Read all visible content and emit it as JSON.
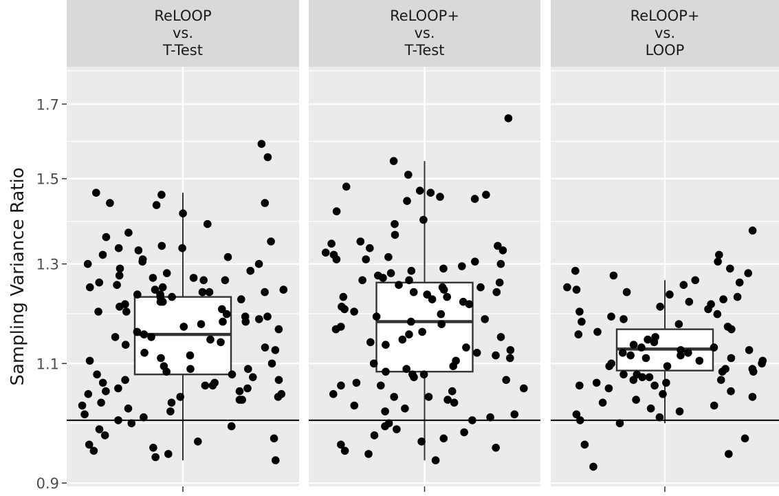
{
  "chart_data": {
    "type": "boxplot",
    "ylabel": "Sampling Variance Ratio",
    "y_scale": "log",
    "ylim": [
      0.895,
      1.81
    ],
    "y_ticks": [
      0.9,
      1.1,
      1.3,
      1.5,
      1.7
    ],
    "y_tick_labels": [
      "0.9",
      "1.1",
      "1.3",
      "1.5",
      "1.7"
    ],
    "reference_line": 1.0,
    "grid": true,
    "facets": [
      {
        "title": [
          "ReLOOP",
          "vs.",
          "T-Test"
        ],
        "box": {
          "q1": 1.08,
          "median": 1.155,
          "q3": 1.23,
          "whisker_low": 0.935,
          "whisker_high": 1.465
        },
        "points": [
          1.59,
          1.555,
          1.465,
          1.46,
          1.44,
          1.44,
          1.435,
          1.415,
          1.39,
          1.37,
          1.36,
          1.35,
          1.34,
          1.335,
          1.335,
          1.33,
          1.32,
          1.315,
          1.31,
          1.305,
          1.3,
          1.3,
          1.29,
          1.285,
          1.28,
          1.275,
          1.27,
          1.27,
          1.265,
          1.265,
          1.26,
          1.255,
          1.25,
          1.25,
          1.245,
          1.245,
          1.24,
          1.24,
          1.24,
          1.235,
          1.235,
          1.23,
          1.23,
          1.225,
          1.22,
          1.22,
          1.215,
          1.21,
          1.205,
          1.2,
          1.2,
          1.195,
          1.19,
          1.19,
          1.185,
          1.18,
          1.18,
          1.175,
          1.17,
          1.165,
          1.16,
          1.155,
          1.15,
          1.15,
          1.145,
          1.14,
          1.135,
          1.13,
          1.125,
          1.12,
          1.115,
          1.11,
          1.105,
          1.1,
          1.095,
          1.09,
          1.09,
          1.085,
          1.08,
          1.08,
          1.075,
          1.07,
          1.07,
          1.065,
          1.065,
          1.06,
          1.06,
          1.055,
          1.055,
          1.05,
          1.05,
          1.045,
          1.045,
          1.04,
          1.04,
          1.035,
          1.035,
          1.03,
          1.03,
          1.025,
          1.02,
          1.015,
          1.01,
          1.005,
          1.0,
          0.995,
          0.99,
          0.985,
          0.975,
          0.97,
          0.965,
          0.96,
          0.955,
          0.95,
          0.945,
          0.94,
          0.935
        ]
      },
      {
        "title": [
          "ReLOOP+",
          "vs.",
          "T-Test"
        ],
        "box": {
          "q1": 1.085,
          "median": 1.18,
          "q3": 1.26,
          "whisker_low": 0.935,
          "whisker_high": 1.545
        },
        "points": [
          1.66,
          1.545,
          1.51,
          1.48,
          1.47,
          1.465,
          1.46,
          1.455,
          1.45,
          1.445,
          1.42,
          1.4,
          1.39,
          1.365,
          1.35,
          1.345,
          1.34,
          1.335,
          1.33,
          1.325,
          1.32,
          1.315,
          1.31,
          1.31,
          1.305,
          1.3,
          1.295,
          1.29,
          1.285,
          1.28,
          1.275,
          1.27,
          1.265,
          1.265,
          1.26,
          1.255,
          1.25,
          1.25,
          1.245,
          1.24,
          1.24,
          1.235,
          1.23,
          1.23,
          1.225,
          1.22,
          1.215,
          1.21,
          1.205,
          1.2,
          1.195,
          1.19,
          1.185,
          1.18,
          1.175,
          1.17,
          1.165,
          1.16,
          1.155,
          1.15,
          1.145,
          1.14,
          1.135,
          1.13,
          1.125,
          1.12,
          1.115,
          1.11,
          1.105,
          1.1,
          1.095,
          1.09,
          1.085,
          1.08,
          1.08,
          1.075,
          1.07,
          1.065,
          1.06,
          1.06,
          1.055,
          1.05,
          1.045,
          1.04,
          1.04,
          1.035,
          1.03,
          1.025,
          1.02,
          1.015,
          1.01,
          1.005,
          1.0,
          0.995,
          0.99,
          0.985,
          0.98,
          0.975,
          0.97,
          0.965,
          0.96,
          0.955,
          0.95,
          0.945,
          0.935
        ]
      },
      {
        "title": [
          "ReLOOP+",
          "vs.",
          "LOOP"
        ],
        "box": {
          "q1": 1.087,
          "median": 1.127,
          "q3": 1.165,
          "whisker_low": 0.995,
          "whisker_high": 1.265
        },
        "points": [
          1.375,
          1.32,
          1.305,
          1.29,
          1.285,
          1.28,
          1.275,
          1.265,
          1.26,
          1.255,
          1.25,
          1.245,
          1.24,
          1.235,
          1.23,
          1.225,
          1.22,
          1.215,
          1.21,
          1.205,
          1.2,
          1.195,
          1.19,
          1.185,
          1.18,
          1.175,
          1.17,
          1.165,
          1.16,
          1.155,
          1.15,
          1.145,
          1.14,
          1.135,
          1.13,
          1.13,
          1.125,
          1.125,
          1.12,
          1.12,
          1.115,
          1.115,
          1.11,
          1.11,
          1.105,
          1.105,
          1.1,
          1.1,
          1.095,
          1.095,
          1.09,
          1.09,
          1.085,
          1.085,
          1.08,
          1.08,
          1.075,
          1.075,
          1.07,
          1.07,
          1.065,
          1.065,
          1.06,
          1.06,
          1.055,
          1.05,
          1.045,
          1.04,
          1.035,
          1.03,
          1.025,
          1.02,
          1.015,
          1.01,
          1.005,
          1.0,
          0.995,
          0.97,
          0.96,
          0.945,
          0.925
        ]
      }
    ]
  },
  "colors": {
    "panel_bg": "#ebebeb",
    "strip_bg": "#d9d9d9",
    "grid": "#ffffff",
    "point": "#000000",
    "box_fill": "#ffffff",
    "box_stroke": "#333333",
    "reference_line": "#000000",
    "text": "#1a1a1a",
    "axis_text": "#4d4d4d"
  }
}
